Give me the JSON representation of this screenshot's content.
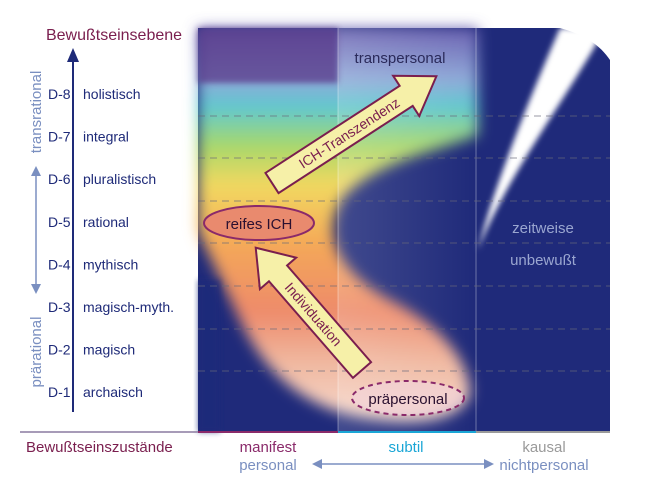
{
  "axis_title": "Bewußtseinsebene",
  "bracket_upper": "transrational",
  "bracket_lower": "prärational",
  "levels": [
    {
      "code": "D-8",
      "name": "holistisch"
    },
    {
      "code": "D-7",
      "name": "integral"
    },
    {
      "code": "D-6",
      "name": "pluralistisch"
    },
    {
      "code": "D-5",
      "name": "rational"
    },
    {
      "code": "D-4",
      "name": "mythisch"
    },
    {
      "code": "D-3",
      "name": "magisch-myth."
    },
    {
      "code": "D-2",
      "name": "magisch"
    },
    {
      "code": "D-1",
      "name": "archaisch"
    }
  ],
  "regions": {
    "transpersonal": "transpersonal",
    "reifes_ich": "reifes ICH",
    "praepersonal": "präpersonal",
    "zeitweise": "zeitweise",
    "unbewusst": "unbewußt"
  },
  "arrows": {
    "transzendenz": "ICH-Transzendenz",
    "individuation": "Individuation"
  },
  "states": {
    "title": "Bewußtseinszustände",
    "manifest": "manifest",
    "subtil": "subtil",
    "kausal": "kausal",
    "personal": "personal",
    "nichtpersonal": "nichtpersonal"
  },
  "colors": {
    "title": "#7a1e4e",
    "navy": "#1e2a78",
    "manifest": "#8a2a6a",
    "subtil": "#1aa6d6",
    "kausal": "#9a9a9a",
    "personal": "#7a8fc0",
    "arrow_fill": "#f6f0a8",
    "ich_fill": "#e98a6e"
  }
}
